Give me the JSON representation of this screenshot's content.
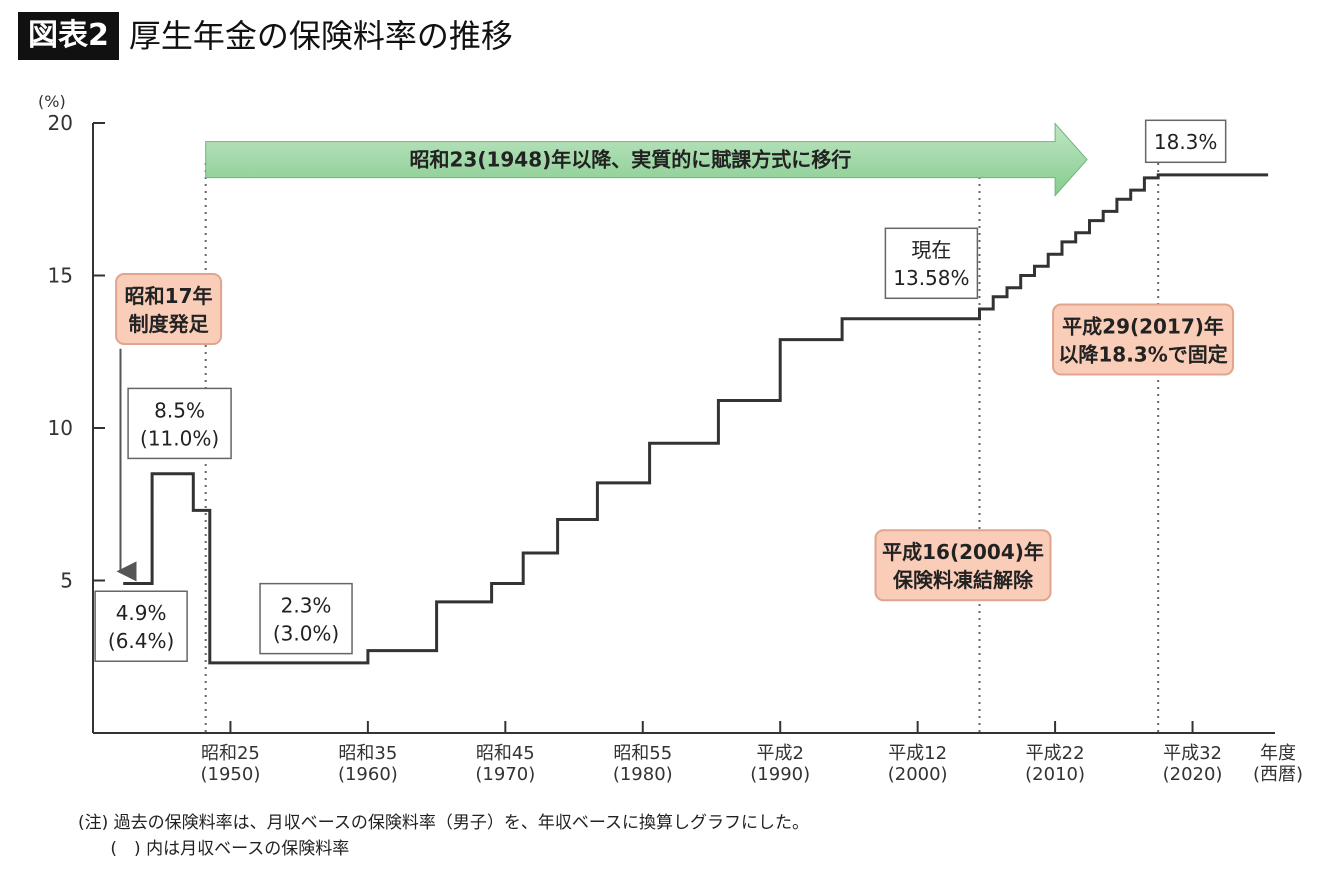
{
  "header": {
    "label": "図表2",
    "title": "厚生年金の保険料率の推移"
  },
  "chart_data": {
    "type": "line",
    "step": true,
    "ylabel": "(%)",
    "xlabel": "年度\n(西暦)",
    "ylim": [
      0,
      20
    ],
    "xlim": [
      1940,
      2026
    ],
    "yticks": [
      5,
      10,
      15,
      20
    ],
    "xticks": [
      {
        "value": 1950,
        "label": "昭和25\n(1950)"
      },
      {
        "value": 1960,
        "label": "昭和35\n(1960)"
      },
      {
        "value": 1970,
        "label": "昭和45\n(1970)"
      },
      {
        "value": 1980,
        "label": "昭和55\n(1980)"
      },
      {
        "value": 1990,
        "label": "平成2\n(1990)"
      },
      {
        "value": 2000,
        "label": "平成12\n(2000)"
      },
      {
        "value": 2010,
        "label": "平成22\n(2010)"
      },
      {
        "value": 2020,
        "label": "平成32\n(2020)"
      }
    ],
    "series": [
      {
        "x": [
          1942.2,
          1944.3,
          1947.3,
          1948.5,
          1960.0,
          1965.0,
          1969.0,
          1971.3,
          1973.8,
          1976.7,
          1980.5,
          1985.5,
          1990.0,
          1994.5,
          1996.5,
          2004.5,
          2005.5,
          2006.5,
          2007.5,
          2008.5,
          2009.5,
          2010.5,
          2011.5,
          2012.5,
          2013.5,
          2014.5,
          2015.5,
          2016.5,
          2017.5,
          2025.5
        ],
        "y": [
          4.9,
          8.5,
          7.3,
          2.3,
          2.7,
          4.3,
          4.9,
          5.9,
          7.0,
          8.2,
          9.5,
          10.9,
          12.9,
          13.58,
          13.58,
          13.9,
          14.3,
          14.6,
          15.0,
          15.3,
          15.7,
          16.1,
          16.4,
          16.8,
          17.1,
          17.5,
          17.8,
          18.2,
          18.3,
          18.3
        ]
      }
    ],
    "vlines": [
      1948.2,
      2004.5,
      2017.5
    ],
    "annotations": [
      {
        "id": "shift-arrow",
        "kind": "arrow-banner",
        "text": "昭和23(1948)年以降、実質的に賦課方式に移行",
        "x0": 1948.2,
        "x1": 2010.0,
        "y": 18.8
      },
      {
        "id": "founding",
        "kind": "salmon-box",
        "text": [
          "昭和17年",
          "制度発足"
        ],
        "x": 1945.5,
        "y": 13.9
      },
      {
        "id": "first-peak",
        "kind": "white-box",
        "text": [
          "8.5%",
          "(11.0%)"
        ],
        "x": 1946.3,
        "y": 10.15
      },
      {
        "id": "start-rate",
        "kind": "white-box",
        "text": [
          "4.9%",
          "(6.4%)"
        ],
        "x": 1943.5,
        "y": 3.5
      },
      {
        "id": "low-rate",
        "kind": "white-box",
        "text": [
          "2.3%",
          "(3.0%)"
        ],
        "x": 1955.5,
        "y": 3.75
      },
      {
        "id": "current",
        "kind": "white-box",
        "text": [
          "現在",
          "13.58%"
        ],
        "x": 2001.0,
        "y": 15.4
      },
      {
        "id": "fixed-from-2017",
        "kind": "salmon-box",
        "text": [
          "平成29(2017)年",
          "以降18.3%で固定"
        ],
        "x": 2016.4,
        "y": 12.9
      },
      {
        "id": "unfreeze-2004",
        "kind": "salmon-box",
        "text": [
          "平成16(2004)年",
          "保険料凍結解除"
        ],
        "x": 2003.3,
        "y": 5.5
      },
      {
        "id": "final-rate",
        "kind": "white-box",
        "text": [
          "18.3%"
        ],
        "x": 2019.5,
        "y": 19.4
      }
    ]
  },
  "notes": [
    "(注) 過去の保険料率は、月収ベースの保険料率（男子）を、年収ベースに換算しグラフにした。",
    "      (　) 内は月収ベースの保険料率"
  ]
}
